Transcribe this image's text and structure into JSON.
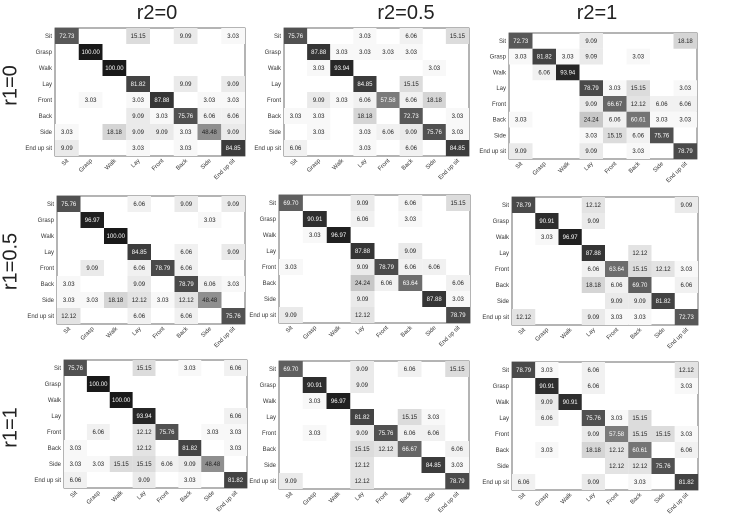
{
  "column_titles": [
    "r2=0",
    "r2=0.5",
    "r2=1"
  ],
  "row_titles": [
    "r1=0",
    "r1=0.5",
    "r1=1"
  ],
  "chart_data": [
    {
      "type": "heatmap",
      "col": "r2=0",
      "row": "r1=0",
      "categories": [
        "Sit",
        "Grasp",
        "Walk",
        "Lay",
        "Front",
        "Back",
        "Side",
        "End up sit"
      ],
      "values": [
        [
          72.73,
          null,
          null,
          15.15,
          null,
          9.09,
          null,
          3.03
        ],
        [
          null,
          100.0,
          null,
          null,
          null,
          null,
          null,
          null
        ],
        [
          null,
          null,
          100.0,
          null,
          null,
          null,
          null,
          null
        ],
        [
          null,
          null,
          null,
          81.82,
          null,
          9.09,
          null,
          9.09
        ],
        [
          null,
          3.03,
          null,
          3.03,
          87.88,
          null,
          3.03,
          3.03
        ],
        [
          null,
          null,
          null,
          9.09,
          3.03,
          75.76,
          6.06,
          6.06
        ],
        [
          3.03,
          null,
          18.18,
          9.09,
          9.09,
          3.03,
          48.48,
          9.09
        ],
        [
          9.09,
          null,
          null,
          3.03,
          null,
          3.03,
          null,
          84.85
        ]
      ]
    },
    {
      "type": "heatmap",
      "col": "r2=0.5",
      "row": "r1=0",
      "categories": [
        "Sit",
        "Grasp",
        "Walk",
        "Lay",
        "Front",
        "Back",
        "Side",
        "End up sit"
      ],
      "values": [
        [
          75.76,
          null,
          null,
          3.03,
          null,
          6.06,
          null,
          15.15
        ],
        [
          null,
          87.88,
          3.03,
          3.03,
          3.03,
          3.03,
          null,
          null
        ],
        [
          null,
          3.03,
          93.94,
          null,
          null,
          null,
          3.03,
          null
        ],
        [
          null,
          null,
          null,
          84.85,
          null,
          15.15,
          null,
          null
        ],
        [
          null,
          9.09,
          3.03,
          6.06,
          57.58,
          6.06,
          18.18,
          null
        ],
        [
          3.03,
          3.03,
          null,
          18.18,
          null,
          72.73,
          null,
          3.03
        ],
        [
          null,
          3.03,
          null,
          3.03,
          6.06,
          9.09,
          75.76,
          3.03
        ],
        [
          6.06,
          null,
          null,
          3.03,
          null,
          6.06,
          null,
          84.85
        ]
      ]
    },
    {
      "type": "heatmap",
      "col": "r2=1",
      "row": "r1=0",
      "categories": [
        "Sit",
        "Grasp",
        "Walk",
        "Lay",
        "Front",
        "Back",
        "Side",
        "End up sit"
      ],
      "values": [
        [
          72.73,
          null,
          null,
          9.09,
          null,
          null,
          null,
          18.18
        ],
        [
          3.03,
          81.82,
          3.03,
          9.09,
          null,
          3.03,
          null,
          null
        ],
        [
          null,
          6.06,
          93.94,
          null,
          null,
          null,
          null,
          null
        ],
        [
          null,
          null,
          null,
          78.79,
          3.03,
          15.15,
          null,
          3.03
        ],
        [
          null,
          null,
          null,
          9.09,
          66.67,
          12.12,
          6.06,
          6.06
        ],
        [
          3.03,
          null,
          null,
          24.24,
          6.06,
          60.61,
          3.03,
          3.03
        ],
        [
          null,
          null,
          null,
          3.03,
          15.15,
          6.06,
          75.76,
          null
        ],
        [
          9.09,
          null,
          null,
          9.09,
          null,
          3.03,
          null,
          78.79
        ]
      ]
    },
    {
      "type": "heatmap",
      "col": "r2=0",
      "row": "r1=0.5",
      "categories": [
        "Sit",
        "Grasp",
        "Walk",
        "Lay",
        "Front",
        "Back",
        "Side",
        "End up sit"
      ],
      "values": [
        [
          75.76,
          null,
          null,
          6.06,
          null,
          9.09,
          null,
          9.09
        ],
        [
          null,
          96.97,
          null,
          null,
          null,
          null,
          3.03,
          null
        ],
        [
          null,
          null,
          100.0,
          null,
          null,
          null,
          null,
          null
        ],
        [
          null,
          null,
          null,
          84.85,
          null,
          6.06,
          null,
          9.09
        ],
        [
          null,
          9.09,
          null,
          6.06,
          78.79,
          6.06,
          null,
          null
        ],
        [
          3.03,
          null,
          null,
          9.09,
          null,
          78.79,
          6.06,
          3.03
        ],
        [
          3.03,
          3.03,
          18.18,
          12.12,
          3.03,
          12.12,
          48.48,
          null
        ],
        [
          12.12,
          null,
          null,
          6.06,
          null,
          6.06,
          null,
          75.76
        ]
      ]
    },
    {
      "type": "heatmap",
      "col": "r2=0.5",
      "row": "r1=0.5",
      "categories": [
        "Sit",
        "Grasp",
        "Walk",
        "Lay",
        "Front",
        "Back",
        "Side",
        "End up sit"
      ],
      "values": [
        [
          69.7,
          null,
          null,
          9.09,
          null,
          6.06,
          null,
          15.15
        ],
        [
          null,
          90.91,
          null,
          6.06,
          null,
          3.03,
          null,
          null
        ],
        [
          null,
          3.03,
          96.97,
          null,
          null,
          null,
          null,
          null
        ],
        [
          null,
          null,
          null,
          87.88,
          null,
          9.09,
          null,
          null
        ],
        [
          3.03,
          null,
          null,
          9.09,
          78.79,
          6.06,
          6.06,
          null
        ],
        [
          null,
          null,
          null,
          24.24,
          6.06,
          63.64,
          null,
          6.06
        ],
        [
          null,
          null,
          null,
          9.09,
          null,
          null,
          87.88,
          3.03
        ],
        [
          9.09,
          null,
          null,
          12.12,
          null,
          null,
          null,
          78.79
        ]
      ]
    },
    {
      "type": "heatmap",
      "col": "r2=1",
      "row": "r1=0.5",
      "categories": [
        "Sit",
        "Grasp",
        "Walk",
        "Lay",
        "Front",
        "Back",
        "Side",
        "End up sit"
      ],
      "values": [
        [
          78.79,
          null,
          null,
          12.12,
          null,
          null,
          null,
          9.09
        ],
        [
          null,
          90.91,
          null,
          9.09,
          null,
          null,
          null,
          null
        ],
        [
          null,
          3.03,
          96.97,
          null,
          null,
          null,
          null,
          null
        ],
        [
          null,
          null,
          null,
          87.88,
          null,
          12.12,
          null,
          null
        ],
        [
          null,
          null,
          null,
          6.06,
          63.64,
          15.15,
          12.12,
          3.03
        ],
        [
          null,
          null,
          null,
          18.18,
          6.06,
          69.7,
          null,
          6.06
        ],
        [
          null,
          null,
          null,
          null,
          9.09,
          9.09,
          81.82,
          null
        ],
        [
          12.12,
          null,
          null,
          9.09,
          3.03,
          3.03,
          null,
          72.73
        ]
      ]
    },
    {
      "type": "heatmap",
      "col": "r2=0",
      "row": "r1=1",
      "categories": [
        "Sit",
        "Grasp",
        "Walk",
        "Lay",
        "Front",
        "Back",
        "Side",
        "End up sit"
      ],
      "values": [
        [
          75.76,
          null,
          null,
          15.15,
          null,
          3.03,
          null,
          6.06
        ],
        [
          null,
          100.0,
          null,
          null,
          null,
          null,
          null,
          null
        ],
        [
          null,
          null,
          100.0,
          null,
          null,
          null,
          null,
          null
        ],
        [
          null,
          null,
          null,
          93.94,
          null,
          null,
          null,
          6.06
        ],
        [
          null,
          6.06,
          null,
          12.12,
          75.76,
          null,
          3.03,
          3.03
        ],
        [
          3.03,
          null,
          null,
          12.12,
          null,
          81.82,
          null,
          3.03
        ],
        [
          3.03,
          3.03,
          15.15,
          15.15,
          6.06,
          9.09,
          48.48,
          null
        ],
        [
          6.06,
          null,
          null,
          9.09,
          null,
          3.03,
          null,
          81.82
        ]
      ]
    },
    {
      "type": "heatmap",
      "col": "r2=0.5",
      "row": "r1=1",
      "categories": [
        "Sit",
        "Grasp",
        "Walk",
        "Lay",
        "Front",
        "Back",
        "Side",
        "End up sit"
      ],
      "values": [
        [
          69.7,
          null,
          null,
          9.09,
          null,
          6.06,
          null,
          15.15
        ],
        [
          null,
          90.91,
          null,
          9.09,
          null,
          null,
          null,
          null
        ],
        [
          null,
          3.03,
          96.97,
          null,
          null,
          null,
          null,
          null
        ],
        [
          null,
          null,
          null,
          81.82,
          null,
          15.15,
          3.03,
          null
        ],
        [
          null,
          3.03,
          null,
          9.09,
          75.76,
          6.06,
          6.06,
          null
        ],
        [
          null,
          null,
          null,
          15.15,
          12.12,
          66.67,
          null,
          6.06
        ],
        [
          null,
          null,
          null,
          12.12,
          null,
          null,
          84.85,
          3.03
        ],
        [
          9.09,
          null,
          null,
          12.12,
          null,
          null,
          null,
          78.79
        ]
      ]
    },
    {
      "type": "heatmap",
      "col": "r2=1",
      "row": "r1=1",
      "categories": [
        "Sit",
        "Grasp",
        "Walk",
        "Lay",
        "Front",
        "Back",
        "Side",
        "End up sit"
      ],
      "values": [
        [
          78.79,
          3.03,
          null,
          6.06,
          null,
          null,
          null,
          12.12
        ],
        [
          null,
          90.91,
          null,
          6.06,
          null,
          null,
          null,
          3.03
        ],
        [
          null,
          9.09,
          90.91,
          null,
          null,
          null,
          null,
          null
        ],
        [
          null,
          6.06,
          null,
          75.76,
          3.03,
          15.15,
          null,
          null
        ],
        [
          null,
          null,
          null,
          9.09,
          57.58,
          15.15,
          15.15,
          3.03
        ],
        [
          null,
          3.03,
          null,
          18.18,
          12.12,
          60.61,
          null,
          6.06
        ],
        [
          null,
          null,
          null,
          null,
          12.12,
          12.12,
          75.76,
          null
        ],
        [
          6.06,
          null,
          null,
          9.09,
          null,
          3.03,
          null,
          81.82
        ]
      ]
    }
  ]
}
